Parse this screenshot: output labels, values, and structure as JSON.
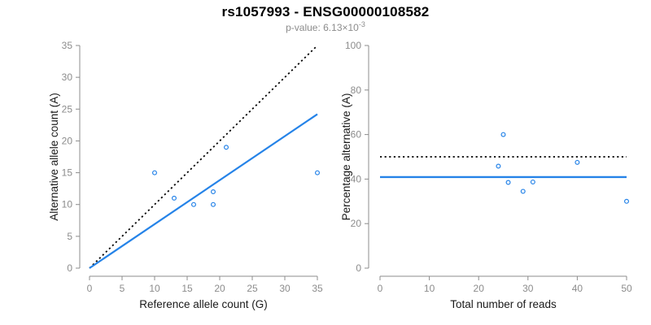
{
  "page": {
    "title": "rs1057993 - ENSG00000108582",
    "subtitle_main": "p-value: 6.13×10",
    "subtitle_exponent": "-3"
  },
  "colors": {
    "accent_blue": "#2583E8",
    "axis_gray": "#8C8C8C",
    "label_black": "#1A1A1A",
    "subtitle_gray": "#8C8C8C",
    "dotted_line_black": "#000000",
    "background": "#FFFFFF"
  },
  "chart_data": [
    {
      "type": "scatter",
      "panel": "left",
      "title": "",
      "xlabel": "Reference allele count (G)",
      "ylabel": "Alternative allele count (A)",
      "xlim": [
        0,
        35
      ],
      "ylim": [
        0,
        35
      ],
      "xticks": [
        0,
        5,
        10,
        15,
        20,
        25,
        30,
        35
      ],
      "yticks": [
        0,
        5,
        10,
        15,
        20,
        25,
        30,
        35
      ],
      "grid": false,
      "legend": "none",
      "points": [
        {
          "x": 10,
          "y": 15
        },
        {
          "x": 13,
          "y": 11
        },
        {
          "x": 16,
          "y": 10
        },
        {
          "x": 19,
          "y": 10
        },
        {
          "x": 19,
          "y": 12
        },
        {
          "x": 21,
          "y": 19
        },
        {
          "x": 35,
          "y": 15
        }
      ],
      "lines": [
        {
          "name": "identity-line",
          "style": "dotted",
          "color": "#000000",
          "width": 1.8,
          "x": [
            0,
            35
          ],
          "y": [
            0,
            35
          ]
        },
        {
          "name": "fitted-ratio-line",
          "style": "solid",
          "color": "#2583E8",
          "width": 2.2,
          "x": [
            0,
            35
          ],
          "y": [
            0,
            24.2
          ]
        }
      ]
    },
    {
      "type": "scatter",
      "panel": "right",
      "title": "",
      "xlabel": "Total number of reads",
      "ylabel": "Percentage alternative (A)",
      "xlim": [
        0,
        50
      ],
      "ylim": [
        0,
        100
      ],
      "xticks": [
        0,
        10,
        20,
        30,
        40,
        50
      ],
      "yticks": [
        0,
        20,
        40,
        60,
        80,
        100
      ],
      "grid": false,
      "legend": "none",
      "points": [
        {
          "x": 25,
          "y": 60
        },
        {
          "x": 24,
          "y": 45.8
        },
        {
          "x": 26,
          "y": 38.5
        },
        {
          "x": 29,
          "y": 34.5
        },
        {
          "x": 31,
          "y": 38.7
        },
        {
          "x": 40,
          "y": 47.5
        },
        {
          "x": 50,
          "y": 30
        }
      ],
      "lines": [
        {
          "name": "fifty-percent-line",
          "style": "dotted",
          "color": "#000000",
          "width": 1.8,
          "x": [
            0,
            50
          ],
          "y": [
            50,
            50
          ]
        },
        {
          "name": "mean-percentage-line",
          "style": "solid",
          "color": "#2583E8",
          "width": 2.4,
          "x": [
            0,
            50
          ],
          "y": [
            40.9,
            40.9
          ]
        }
      ]
    }
  ]
}
